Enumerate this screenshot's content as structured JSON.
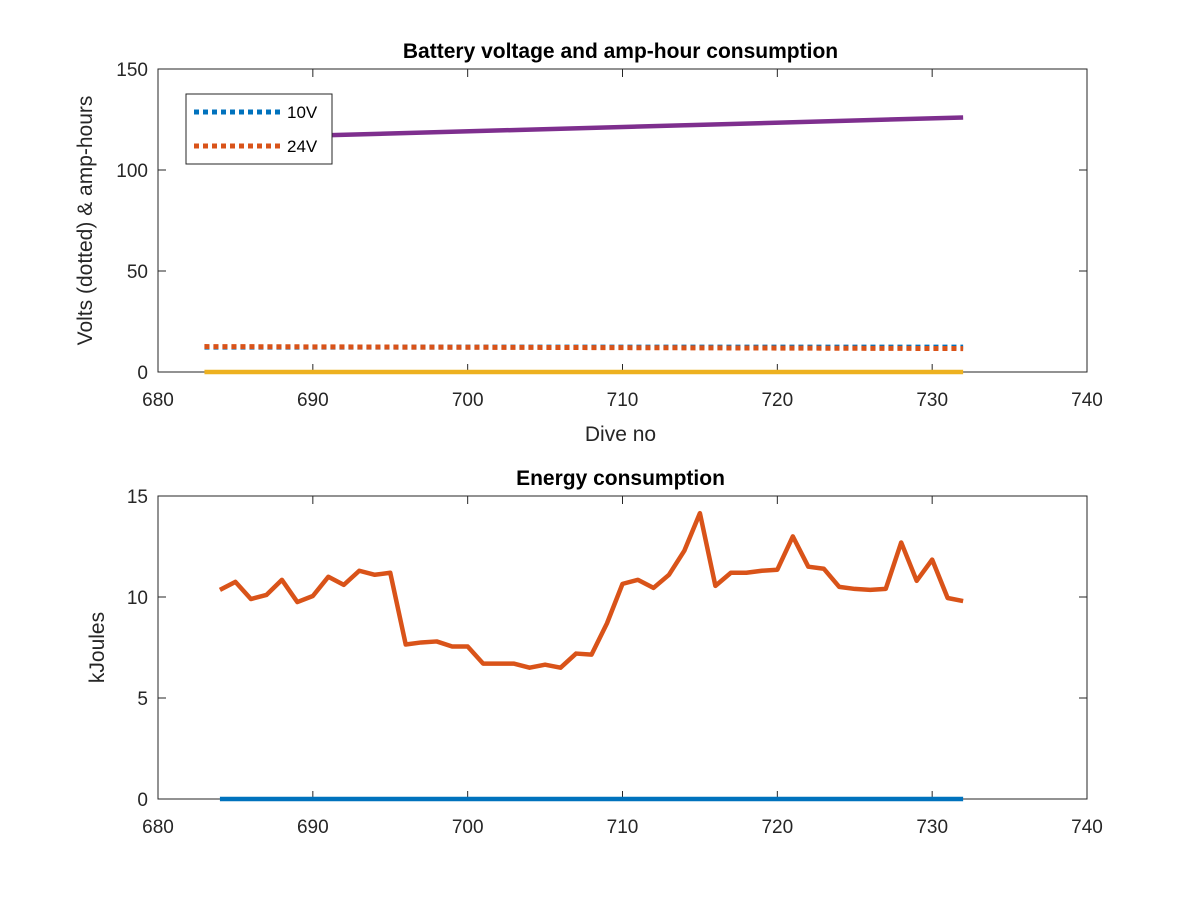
{
  "chart_data": [
    {
      "type": "line",
      "title": "Battery voltage and amp-hour consumption",
      "xlabel": "Dive no",
      "ylabel": "Volts (dotted) & amp-hours",
      "xlim": [
        680,
        740
      ],
      "ylim": [
        0,
        150
      ],
      "xticks": [
        "680",
        "690",
        "700",
        "710",
        "720",
        "730",
        "740"
      ],
      "yticks": [
        "0",
        "50",
        "100",
        "150"
      ],
      "grid": false,
      "legend_position": "top-left",
      "x": [
        683,
        732
      ],
      "series": [
        {
          "name": "10V",
          "style": "dotted",
          "color": "#0072BD",
          "values": [
            12.3,
            12.3
          ]
        },
        {
          "name": "24V",
          "style": "dotted",
          "color": "#D95319",
          "values": [
            12.6,
            11.6
          ]
        },
        {
          "style": "solid",
          "color": "#7E2F8E",
          "values": [
            115.5,
            126
          ]
        },
        {
          "style": "solid",
          "color": "#EDB120",
          "values": [
            0,
            0
          ]
        }
      ]
    },
    {
      "type": "line",
      "title": "Energy consumption",
      "xlabel": "",
      "ylabel": "kJoules",
      "xlim": [
        680,
        740
      ],
      "ylim": [
        0,
        15
      ],
      "xticks": [
        "680",
        "690",
        "700",
        "710",
        "720",
        "730",
        "740"
      ],
      "yticks": [
        "0",
        "5",
        "10",
        "15"
      ],
      "grid": false,
      "x": [
        684,
        685,
        686,
        687,
        688,
        689,
        690,
        691,
        692,
        693,
        694,
        695,
        696,
        697,
        698,
        699,
        700,
        701,
        702,
        703,
        704,
        705,
        706,
        707,
        708,
        709,
        710,
        711,
        712,
        713,
        714,
        715,
        716,
        717,
        718,
        719,
        720,
        721,
        722,
        723,
        724,
        725,
        726,
        727,
        728,
        729,
        730,
        731,
        732
      ],
      "series": [
        {
          "style": "solid",
          "color": "#D95319",
          "values": [
            10.35,
            10.75,
            9.9,
            10.1,
            10.85,
            9.75,
            10.05,
            11.0,
            10.6,
            11.3,
            11.1,
            11.2,
            7.65,
            7.75,
            7.8,
            7.55,
            7.55,
            6.7,
            6.7,
            6.7,
            6.5,
            6.65,
            6.5,
            7.2,
            7.15,
            8.7,
            10.65,
            10.85,
            10.45,
            11.1,
            12.3,
            14.15,
            10.55,
            11.2,
            11.2,
            11.3,
            11.35,
            13.0,
            11.5,
            11.4,
            10.5,
            10.4,
            10.35,
            10.4,
            12.7,
            10.8,
            11.85,
            9.95,
            9.8
          ]
        },
        {
          "style": "solid",
          "color": "#0072BD",
          "values": [
            0,
            0,
            0,
            0,
            0,
            0,
            0,
            0,
            0,
            0,
            0,
            0,
            0,
            0,
            0,
            0,
            0,
            0,
            0,
            0,
            0,
            0,
            0,
            0,
            0,
            0,
            0,
            0,
            0,
            0,
            0,
            0,
            0,
            0,
            0,
            0,
            0,
            0,
            0,
            0,
            0,
            0,
            0,
            0,
            0,
            0,
            0,
            0,
            0
          ]
        }
      ]
    }
  ]
}
